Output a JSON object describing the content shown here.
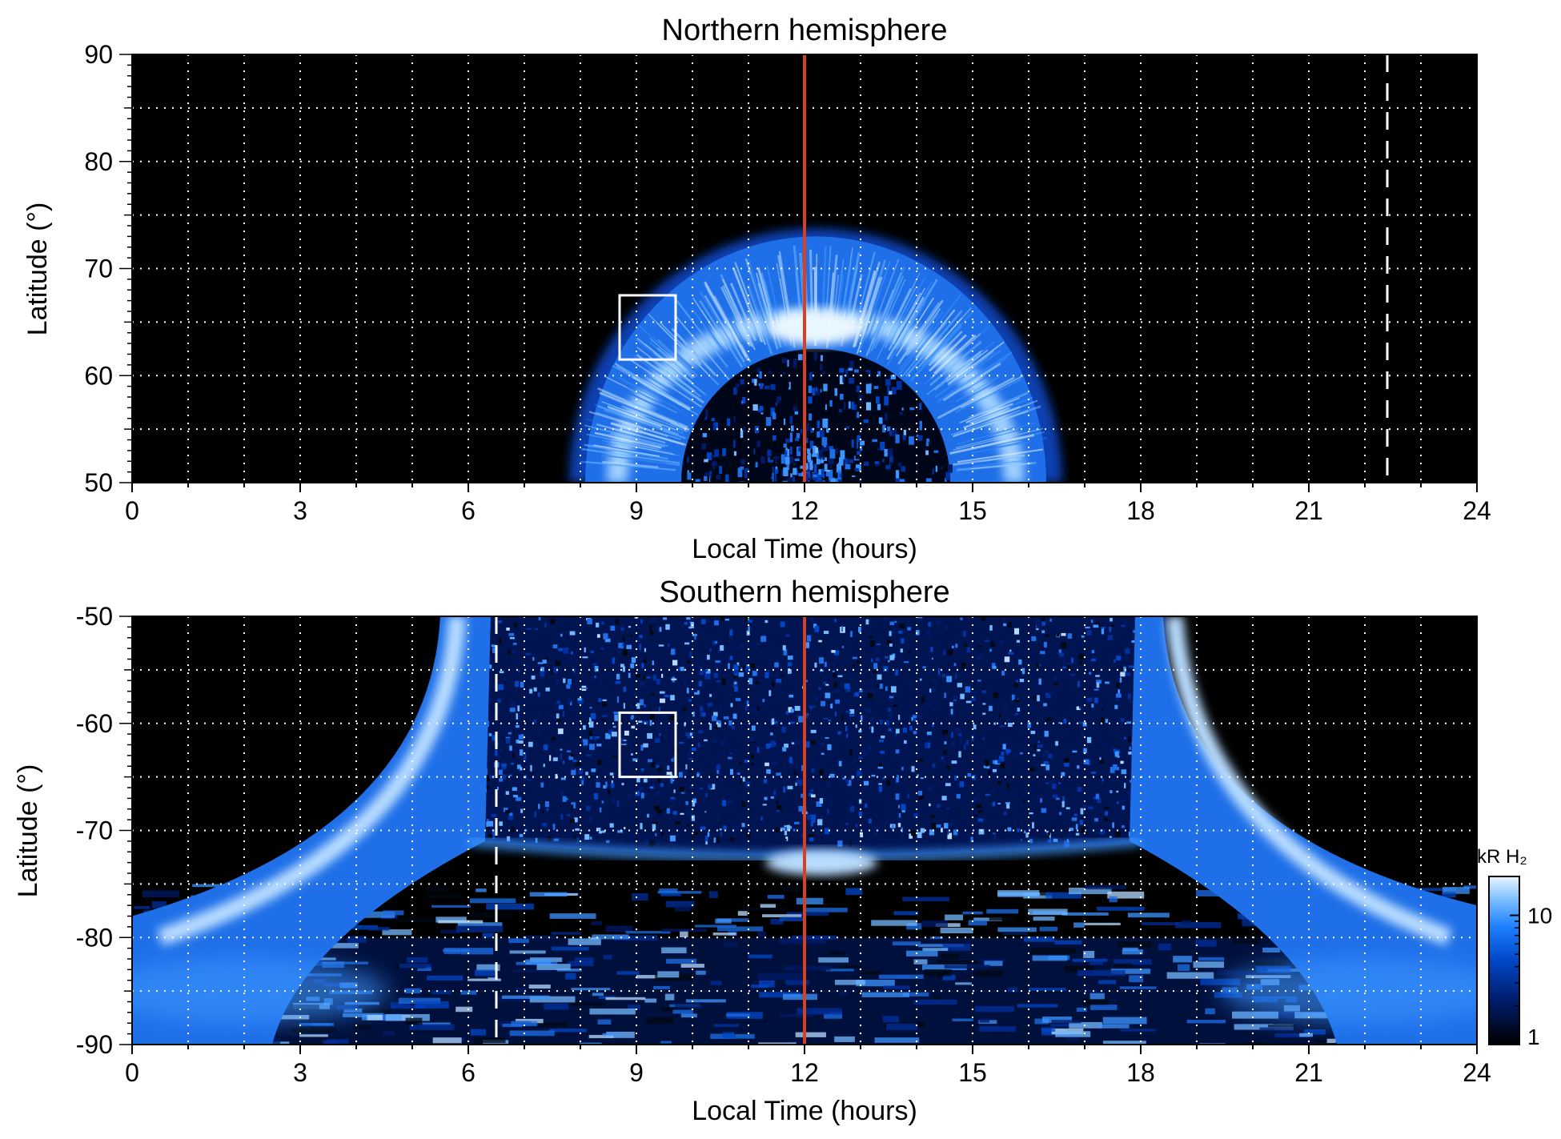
{
  "colorbar": {
    "label": "kR H₂",
    "ticks": [
      1,
      10
    ],
    "range": [
      1,
      20
    ],
    "scale": "log",
    "colors": [
      "#000000",
      "#001a66",
      "#0047c7",
      "#1e7fff",
      "#74b9ff",
      "#e8f6ff"
    ]
  },
  "chart_data": [
    {
      "type": "heatmap",
      "title": "Northern hemisphere",
      "xlabel": "Local Time (hours)",
      "ylabel": "Latitude (°)",
      "xlim": [
        0,
        24
      ],
      "ylim": [
        50,
        90
      ],
      "xticks": [
        0,
        3,
        6,
        9,
        12,
        15,
        18,
        21,
        24
      ],
      "yticks": [
        50,
        60,
        70,
        80,
        90
      ],
      "grid": true,
      "noon_line": 12,
      "dashed_line": 22.4,
      "box": {
        "x": [
          8.7,
          9.7
        ],
        "y": [
          61.5,
          67.5
        ]
      },
      "oval": {
        "center_lt": 12.2,
        "half_width_hours": 4.4,
        "peak_lat": 64.5,
        "equatorward_lat_at_noon": 62.5,
        "poleward_lat_at_noon": 73
      }
    },
    {
      "type": "heatmap",
      "title": "Southern hemisphere",
      "xlabel": "Local Time (hours)",
      "ylabel": "Latitude (°)",
      "xlim": [
        0,
        24
      ],
      "ylim": [
        -90,
        -50
      ],
      "xticks": [
        0,
        3,
        6,
        9,
        12,
        15,
        18,
        21,
        24
      ],
      "yticks": [
        -50,
        -60,
        -70,
        -80,
        -90
      ],
      "grid": true,
      "noon_line": 12,
      "dashed_line": 6.5,
      "box": {
        "x": [
          8.7,
          9.7
        ],
        "y": [
          -65,
          -59
        ]
      },
      "oval": {
        "dawn_lt_top": 6,
        "dusk_lt_top": 18.5,
        "peak_lat_flank": -71,
        "peak_lat_noon": -73
      }
    }
  ]
}
